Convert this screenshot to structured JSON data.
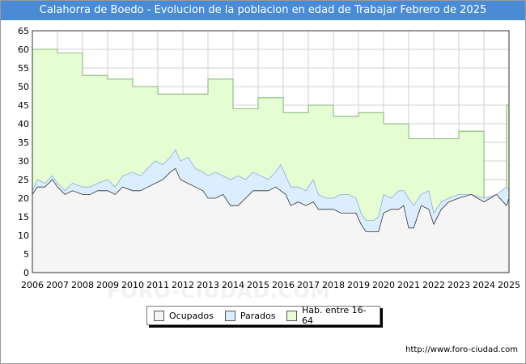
{
  "title": "Calahorra de Boedo - Evolucion de la poblacion en edad de Trabajar Febrero de 2025",
  "watermark": "FORO-CIUDAD.COM",
  "source": "http://www.foro-ciudad.com",
  "colors": {
    "title_bg": "#4a8bd6",
    "hab_fill": "#e6fcd2",
    "hab_line": "#6aa85c",
    "parados_fill": "#dbeeff",
    "parados_line": "#8aaed6",
    "ocupados_fill": "#f5f5f5",
    "ocupados_line": "#333333",
    "grid": "#d0d0d0"
  },
  "legend": [
    {
      "label": "Ocupados",
      "color": "#f5f5f5"
    },
    {
      "label": "Parados",
      "color": "#dbeeff"
    },
    {
      "label": "Hab. entre 16-64",
      "color": "#e6fcd2"
    }
  ],
  "chart_data": {
    "type": "area",
    "xlabel": "",
    "ylabel": "",
    "xlim": [
      2006,
      2025
    ],
    "ylim": [
      0,
      65
    ],
    "x_ticks": [
      "2006",
      "2007",
      "2008",
      "2009",
      "2010",
      "2011",
      "2012",
      "2013",
      "2014",
      "2015",
      "2016",
      "2017",
      "2018",
      "2019",
      "2020",
      "2021",
      "2022",
      "2023",
      "2024",
      "2025"
    ],
    "y_ticks": [
      0,
      5,
      10,
      15,
      20,
      25,
      30,
      35,
      40,
      45,
      50,
      55,
      60,
      65
    ],
    "grid": true,
    "legend_position": "bottom",
    "series": [
      {
        "name": "Hab. entre 16-64",
        "step": true,
        "values": [
          [
            2006,
            60
          ],
          [
            2007,
            59
          ],
          [
            2008,
            53
          ],
          [
            2009,
            52
          ],
          [
            2010,
            50
          ],
          [
            2011,
            48
          ],
          [
            2012,
            48
          ],
          [
            2013,
            52
          ],
          [
            2014,
            44
          ],
          [
            2015,
            47
          ],
          [
            2016,
            43
          ],
          [
            2017,
            45
          ],
          [
            2018,
            42
          ],
          [
            2019,
            43
          ],
          [
            2020,
            40
          ],
          [
            2021,
            36
          ],
          [
            2022,
            36
          ],
          [
            2023,
            38
          ],
          [
            2024,
            20
          ],
          [
            2024.9,
            45
          ],
          [
            2025,
            25
          ]
        ]
      },
      {
        "name": "Parados",
        "values": [
          [
            2006,
            22
          ],
          [
            2006.2,
            25
          ],
          [
            2006.5,
            24
          ],
          [
            2006.8,
            26
          ],
          [
            2007,
            24
          ],
          [
            2007.3,
            22
          ],
          [
            2007.6,
            24
          ],
          [
            2008,
            23
          ],
          [
            2008.3,
            23
          ],
          [
            2008.6,
            24
          ],
          [
            2009,
            25
          ],
          [
            2009.3,
            23
          ],
          [
            2009.6,
            26
          ],
          [
            2010,
            27
          ],
          [
            2010.3,
            26
          ],
          [
            2010.6,
            28
          ],
          [
            2010.9,
            30
          ],
          [
            2011.2,
            29
          ],
          [
            2011.5,
            31
          ],
          [
            2011.7,
            33
          ],
          [
            2011.9,
            30
          ],
          [
            2012.2,
            31
          ],
          [
            2012.5,
            28
          ],
          [
            2012.8,
            27
          ],
          [
            2013,
            26
          ],
          [
            2013.3,
            27
          ],
          [
            2013.6,
            26
          ],
          [
            2013.9,
            25
          ],
          [
            2014.2,
            26
          ],
          [
            2014.5,
            25
          ],
          [
            2014.8,
            27
          ],
          [
            2015.1,
            26
          ],
          [
            2015.4,
            25
          ],
          [
            2015.7,
            27
          ],
          [
            2015.9,
            29
          ],
          [
            2016.1,
            26
          ],
          [
            2016.3,
            23
          ],
          [
            2016.6,
            23
          ],
          [
            2016.9,
            22
          ],
          [
            2017.2,
            25
          ],
          [
            2017.4,
            21
          ],
          [
            2017.7,
            20
          ],
          [
            2018,
            20
          ],
          [
            2018.3,
            21
          ],
          [
            2018.6,
            21
          ],
          [
            2018.9,
            20
          ],
          [
            2019.1,
            16
          ],
          [
            2019.3,
            14
          ],
          [
            2019.6,
            14
          ],
          [
            2019.8,
            15
          ],
          [
            2020,
            21
          ],
          [
            2020.3,
            20
          ],
          [
            2020.6,
            22
          ],
          [
            2020.8,
            22
          ],
          [
            2021,
            20
          ],
          [
            2021.2,
            18
          ],
          [
            2021.5,
            21
          ],
          [
            2021.8,
            22
          ],
          [
            2022,
            16
          ],
          [
            2022.3,
            19
          ],
          [
            2022.6,
            20
          ],
          [
            2023,
            21
          ],
          [
            2023.5,
            21
          ],
          [
            2024,
            20
          ],
          [
            2024.5,
            21
          ],
          [
            2024.9,
            23
          ],
          [
            2025,
            22
          ]
        ]
      },
      {
        "name": "Ocupados",
        "values": [
          [
            2006,
            21
          ],
          [
            2006.2,
            23
          ],
          [
            2006.5,
            23
          ],
          [
            2006.8,
            25
          ],
          [
            2007,
            23
          ],
          [
            2007.3,
            21
          ],
          [
            2007.6,
            22
          ],
          [
            2008,
            21
          ],
          [
            2008.3,
            21
          ],
          [
            2008.6,
            22
          ],
          [
            2009,
            22
          ],
          [
            2009.3,
            21
          ],
          [
            2009.6,
            23
          ],
          [
            2010,
            22
          ],
          [
            2010.3,
            22
          ],
          [
            2010.6,
            23
          ],
          [
            2010.9,
            24
          ],
          [
            2011.2,
            25
          ],
          [
            2011.5,
            27
          ],
          [
            2011.7,
            28
          ],
          [
            2011.9,
            25
          ],
          [
            2012.2,
            24
          ],
          [
            2012.5,
            23
          ],
          [
            2012.8,
            22
          ],
          [
            2013,
            20
          ],
          [
            2013.3,
            20
          ],
          [
            2013.6,
            21
          ],
          [
            2013.9,
            18
          ],
          [
            2014.2,
            18
          ],
          [
            2014.5,
            20
          ],
          [
            2014.8,
            22
          ],
          [
            2015.1,
            22
          ],
          [
            2015.4,
            22
          ],
          [
            2015.7,
            23
          ],
          [
            2015.9,
            22
          ],
          [
            2016.1,
            21
          ],
          [
            2016.3,
            18
          ],
          [
            2016.6,
            19
          ],
          [
            2016.9,
            18
          ],
          [
            2017.2,
            19
          ],
          [
            2017.4,
            17
          ],
          [
            2017.7,
            17
          ],
          [
            2018,
            17
          ],
          [
            2018.3,
            16
          ],
          [
            2018.6,
            16
          ],
          [
            2018.9,
            16
          ],
          [
            2019.1,
            13
          ],
          [
            2019.3,
            11
          ],
          [
            2019.6,
            11
          ],
          [
            2019.8,
            11
          ],
          [
            2020,
            16
          ],
          [
            2020.3,
            17
          ],
          [
            2020.6,
            17
          ],
          [
            2020.8,
            18
          ],
          [
            2021,
            12
          ],
          [
            2021.2,
            12
          ],
          [
            2021.5,
            18
          ],
          [
            2021.8,
            17
          ],
          [
            2022,
            13
          ],
          [
            2022.3,
            17
          ],
          [
            2022.6,
            19
          ],
          [
            2023,
            20
          ],
          [
            2023.5,
            21
          ],
          [
            2024,
            19
          ],
          [
            2024.5,
            21
          ],
          [
            2024.9,
            18
          ],
          [
            2025,
            20
          ]
        ]
      }
    ]
  }
}
